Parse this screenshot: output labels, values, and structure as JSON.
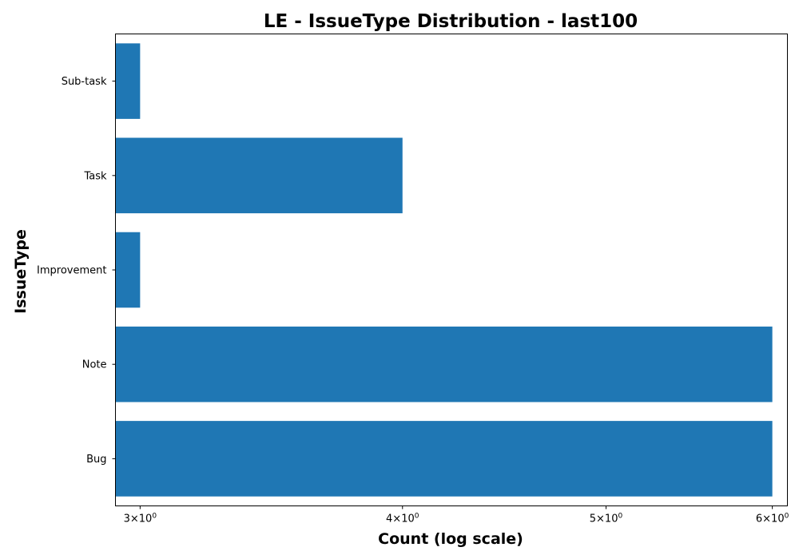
{
  "chart_data": {
    "type": "bar",
    "orientation": "horizontal",
    "title": "LE - IssueType Distribution - last100",
    "xlabel": "Count (log scale)",
    "ylabel": "IssueType",
    "x_scale": "log",
    "xlim": [
      2.92,
      6.1
    ],
    "xticks": [
      {
        "value": 3,
        "base": "3×10",
        "exp": "0"
      },
      {
        "value": 4,
        "base": "4×10",
        "exp": "0"
      },
      {
        "value": 5,
        "base": "5×10",
        "exp": "0"
      },
      {
        "value": 6,
        "base": "6×10",
        "exp": "0"
      }
    ],
    "categories": [
      "Bug",
      "Note",
      "Improvement",
      "Task",
      "Sub-task"
    ],
    "values": [
      6,
      6,
      3,
      4,
      3
    ],
    "bar_color": "#1f77b4",
    "grid": false
  }
}
